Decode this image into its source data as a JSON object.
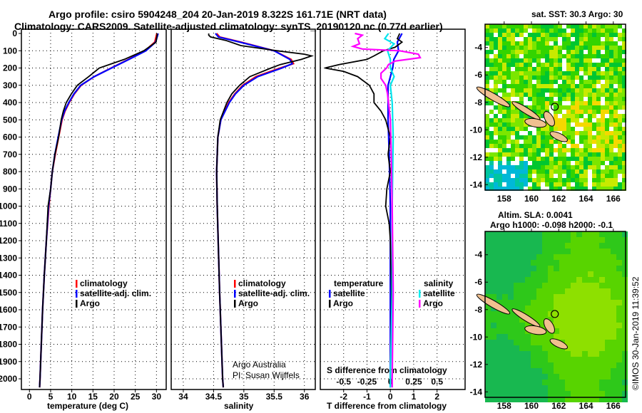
{
  "title_line1": "Argo profile: csiro 5904248_204 20-Jan-2019 8.322S 161.71E (NRT data)",
  "title_line2": "Climatology: CARS2009. Satellite-adjusted climatology: synTS_20190120.nc (0.77d earlier)",
  "credit": "©IMOS 30-Jan-2019 11:39:52",
  "colors": {
    "climatology": "#ff0000",
    "satellite": "#0000ff",
    "argo": "#000000",
    "sal_sat": "#00e5ee",
    "sal_argo": "#ff00ff"
  },
  "chart_data": [
    {
      "type": "line",
      "xlabel": "temperature (deg C)",
      "ylabel": "",
      "xlim": [
        -1.9,
        32.3
      ],
      "ylim": [
        2060,
        -10
      ],
      "xticks": [
        0,
        5,
        10,
        15,
        20,
        25,
        30
      ],
      "yticks": [
        0,
        100,
        200,
        300,
        400,
        500,
        600,
        700,
        800,
        900,
        1000,
        1100,
        1200,
        1300,
        1400,
        1500,
        1600,
        1700,
        1800,
        1900,
        2000
      ],
      "legend": [
        "climatology",
        "satellite-adj. clim.",
        "Argo"
      ],
      "legend_position": "lower-middle",
      "series": [
        {
          "name": "climatology",
          "color": "#ff0000",
          "depth": [
            0,
            50,
            100,
            150,
            200,
            250,
            300,
            350,
            400,
            450,
            500,
            600,
            700,
            800,
            900,
            1000,
            1200,
            1400,
            1600,
            1800,
            2000,
            2050
          ],
          "values": [
            30.1,
            29.6,
            27.3,
            23.4,
            19.3,
            15.3,
            12.2,
            10.6,
            9.4,
            8.4,
            7.7,
            6.9,
            6.1,
            5.4,
            5.0,
            4.6,
            4.0,
            3.5,
            3.1,
            2.8,
            2.5,
            2.4
          ]
        },
        {
          "name": "satellite-adj. clim.",
          "color": "#0000ff",
          "depth": [
            0,
            50,
            100,
            150,
            200,
            250,
            300,
            350,
            400,
            450,
            500,
            600,
            700,
            800,
            900,
            1000,
            1200,
            1400,
            1600,
            1800,
            2000,
            2050
          ],
          "values": [
            30.4,
            29.8,
            27.5,
            23.5,
            19.4,
            15.3,
            12.1,
            10.5,
            9.3,
            8.3,
            7.6,
            6.8,
            6.0,
            5.4,
            5.0,
            4.5,
            4.0,
            3.5,
            3.1,
            2.8,
            2.5,
            2.4
          ]
        },
        {
          "name": "Argo",
          "color": "#000000",
          "depth": [
            0,
            50,
            100,
            150,
            200,
            250,
            300,
            350,
            400,
            450,
            500,
            600,
            700,
            800,
            900,
            1000,
            1200,
            1400,
            1600,
            1800,
            2000,
            2050
          ],
          "values": [
            30.2,
            29.9,
            27.0,
            22.4,
            16.5,
            14.0,
            11.3,
            9.9,
            8.7,
            8.0,
            7.5,
            6.9,
            6.0,
            5.4,
            5.0,
            4.4,
            4.0,
            3.5,
            3.1,
            2.8,
            2.5,
            2.4
          ]
        }
      ]
    },
    {
      "type": "line",
      "xlabel": "salinity",
      "xlim": [
        33.8,
        36.18
      ],
      "ylim": [
        2060,
        -10
      ],
      "xticks": [
        34,
        34.5,
        35,
        35.5,
        36
      ],
      "legend": [
        "climatology",
        "satellite-adj. clim.",
        "Argo"
      ],
      "legend_position": "lower-middle",
      "annotation1": "Argo Australia",
      "annotation2": "PI: Susan Wijffels",
      "series": [
        {
          "name": "climatology",
          "color": "#ff0000",
          "depth": [
            0,
            20,
            50,
            100,
            150,
            175,
            200,
            250,
            300,
            350,
            400,
            500,
            600,
            800,
            1000,
            1500,
            2000,
            2050
          ],
          "values": [
            34.55,
            34.6,
            34.95,
            35.5,
            35.78,
            35.82,
            35.6,
            35.2,
            34.98,
            34.85,
            34.75,
            34.62,
            34.57,
            34.55,
            34.56,
            34.6,
            34.65,
            34.66
          ]
        },
        {
          "name": "satellite-adj. clim.",
          "color": "#0000ff",
          "depth": [
            0,
            20,
            50,
            100,
            150,
            175,
            200,
            250,
            300,
            350,
            400,
            500,
            600,
            800,
            1000,
            1500,
            2000,
            2050
          ],
          "values": [
            34.53,
            34.58,
            34.93,
            35.5,
            35.76,
            35.8,
            35.63,
            35.23,
            35.0,
            34.86,
            34.76,
            34.62,
            34.57,
            34.55,
            34.56,
            34.6,
            34.65,
            34.66
          ]
        },
        {
          "name": "Argo",
          "color": "#000000",
          "depth": [
            0,
            10,
            20,
            40,
            70,
            100,
            120,
            130,
            150,
            180,
            200,
            250,
            300,
            350,
            400,
            500,
            600,
            800,
            1000,
            1500,
            2000,
            2050
          ],
          "values": [
            34.42,
            34.42,
            34.45,
            34.7,
            34.95,
            35.55,
            36.0,
            36.12,
            35.95,
            35.6,
            35.45,
            35.1,
            34.93,
            34.8,
            34.72,
            34.61,
            34.57,
            34.55,
            34.56,
            34.6,
            34.65,
            34.66
          ]
        }
      ]
    },
    {
      "type": "line",
      "xlabel": "T difference from climatology",
      "x2label": "S difference from climatology",
      "xlim": [
        -3.0,
        3.2
      ],
      "ylim": [
        2060,
        -10
      ],
      "xticks": [
        -2,
        -1,
        0,
        1,
        2
      ],
      "x2ticks": [
        -0.5,
        -0.25,
        0,
        0.25,
        0.5
      ],
      "x2labels": [
        "-0.5",
        "-0.25",
        "0",
        "0.25",
        "0.5"
      ],
      "legend_t": {
        "title": "temperature",
        "items": [
          "satellite",
          "Argo"
        ]
      },
      "legend_s": {
        "title": "salinity",
        "items": [
          "satellite",
          "Argo"
        ]
      },
      "series": [
        {
          "name": "T satellite",
          "color": "#0000ff",
          "scale": "T",
          "depth": [
            0,
            50,
            100,
            150,
            200,
            300,
            400,
            500,
            700,
            1000,
            1500,
            2000,
            2050
          ],
          "values": [
            0.5,
            0.3,
            0.35,
            0.15,
            0.1,
            -0.1,
            -0.1,
            -0.1,
            -0.05,
            0,
            0,
            0,
            0
          ]
        },
        {
          "name": "T Argo",
          "color": "#000000",
          "scale": "T",
          "depth": [
            0,
            30,
            50,
            80,
            100,
            130,
            150,
            180,
            200,
            220,
            250,
            300,
            350,
            400,
            450,
            500,
            600,
            700,
            800,
            900,
            1000,
            1100,
            1200,
            1500,
            2000,
            2050
          ],
          "values": [
            0.4,
            0.3,
            0.5,
            0.2,
            -0.3,
            -0.7,
            -1.0,
            -2.2,
            -2.8,
            -2.0,
            -1.4,
            -0.9,
            -0.7,
            -0.7,
            -0.4,
            -0.2,
            0,
            -0.1,
            0,
            -0.15,
            -0.2,
            -0.05,
            0,
            0.05,
            0,
            0
          ]
        },
        {
          "name": "S satellite",
          "color": "#00e5ee",
          "scale": "S",
          "depth": [
            0,
            30,
            60,
            100,
            150,
            200,
            250,
            300,
            400,
            600,
            1000,
            1500,
            2000,
            2050
          ],
          "values": [
            -0.02,
            -0.06,
            0.04,
            -0.03,
            0.0,
            0.0,
            0.04,
            0.0,
            0.02,
            0.03,
            0.02,
            0.02,
            0.0,
            0.0
          ]
        },
        {
          "name": "S Argo",
          "color": "#ff00ff",
          "scale": "S",
          "depth": [
            0,
            10,
            30,
            60,
            75,
            90,
            100,
            120,
            140,
            160,
            180,
            200,
            230,
            260,
            300,
            350,
            400,
            500,
            700,
            1000,
            1500,
            2000,
            2050
          ],
          "values": [
            -0.38,
            -0.3,
            -0.35,
            -0.33,
            -0.4,
            -0.3,
            0.1,
            0.3,
            0.32,
            0.05,
            -0.02,
            -0.04,
            -0.1,
            -0.1,
            -0.05,
            -0.03,
            -0.02,
            0,
            0.01,
            0.02,
            0.03,
            0.02,
            0.02
          ]
        }
      ]
    },
    {
      "type": "heatmap",
      "title": "sat. SST: 30.3 Argo: 30",
      "xticks": [
        158,
        160,
        162,
        164,
        166
      ],
      "yticks": [
        -4,
        -6,
        -8,
        -10,
        -12,
        -14
      ],
      "xlim": [
        156.6,
        166.9
      ],
      "ylim": [
        -14.4,
        -2.3
      ],
      "argo_position": [
        161.71,
        -8.322
      ]
    },
    {
      "type": "heatmap",
      "title1": "Altim. SLA: 0.0041",
      "title2": "Argo h1000: -0.098 h2000: -0.1",
      "xticks": [
        158,
        160,
        162,
        164,
        166
      ],
      "yticks": [
        -4,
        -6,
        -8,
        -10,
        -12,
        -14
      ],
      "xlim": [
        156.6,
        166.9
      ],
      "ylim": [
        -14.4,
        -2.3
      ],
      "argo_position": [
        161.71,
        -8.322
      ]
    }
  ]
}
